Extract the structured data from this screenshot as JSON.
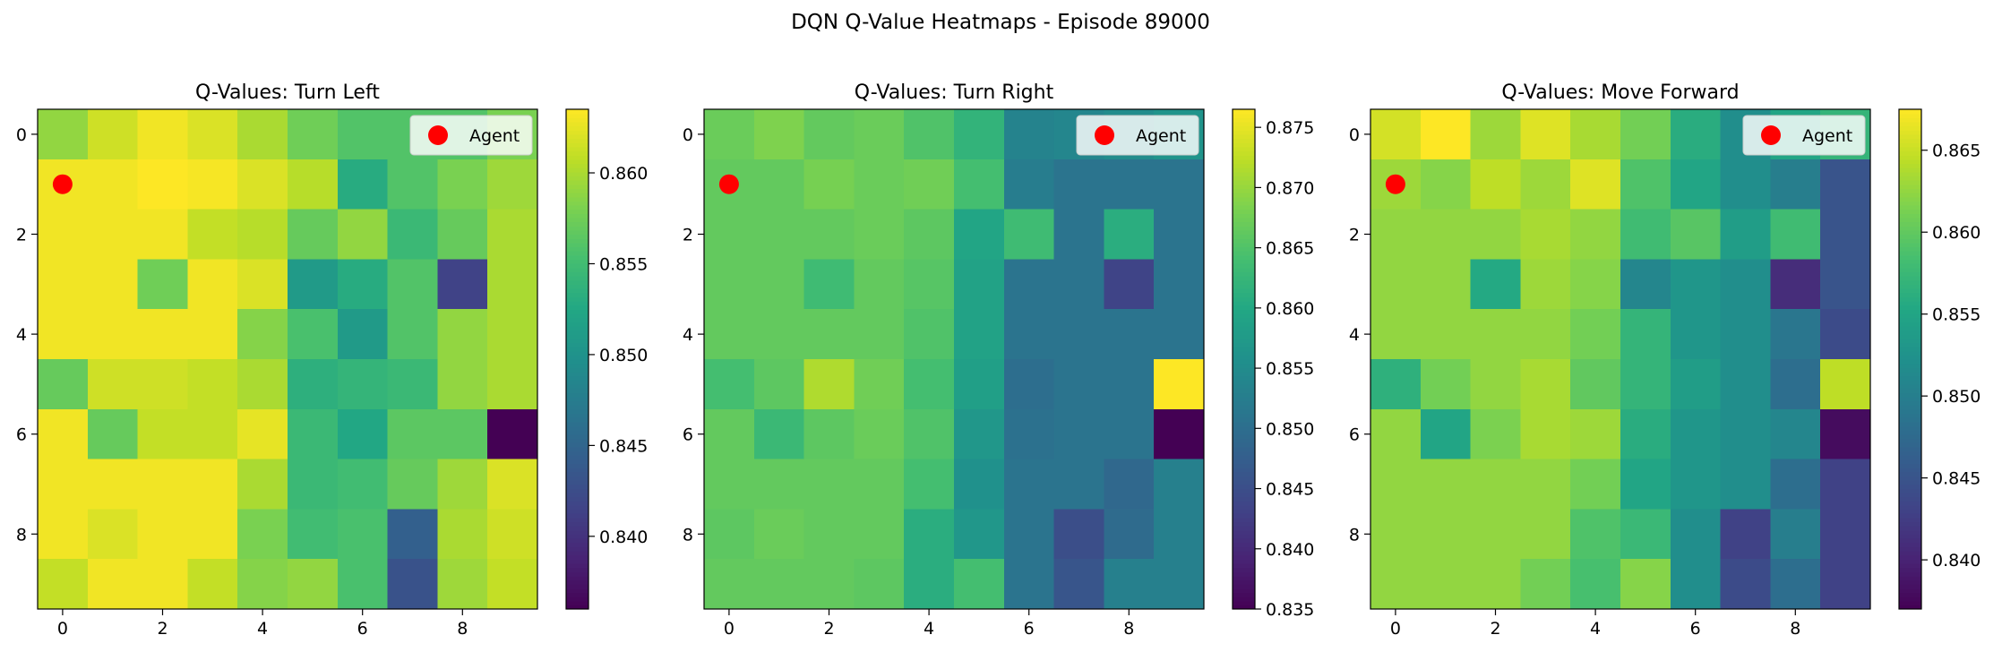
{
  "figure": {
    "suptitle": "DQN Q-Value Heatmaps - Episode 89000"
  },
  "chart_data": [
    {
      "type": "heatmap",
      "title": "Q-Values: Turn Left",
      "xticks": [
        0,
        2,
        4,
        6,
        8
      ],
      "yticks": [
        0,
        2,
        4,
        6,
        8
      ],
      "colormap": "viridis",
      "clim": [
        0.836,
        0.8635
      ],
      "colorbar_ticks": [
        0.84,
        0.845,
        0.85,
        0.855,
        0.86
      ],
      "colorbar_tick_labels": [
        "0.840",
        "0.845",
        "0.850",
        "0.855",
        "0.860"
      ],
      "legend": {
        "label": "Agent",
        "location": "upper right"
      },
      "agent": {
        "row": 1,
        "col": 0,
        "color": "#ff0000"
      },
      "values": [
        [
          0.859,
          0.8615,
          0.863,
          0.862,
          0.86,
          0.8575,
          0.856,
          0.856,
          0.856,
          0.858
        ],
        [
          0.863,
          0.863,
          0.8635,
          0.8632,
          0.862,
          0.8605,
          0.853,
          0.856,
          0.858,
          0.8595
        ],
        [
          0.863,
          0.863,
          0.863,
          0.861,
          0.8605,
          0.857,
          0.859,
          0.8545,
          0.857,
          0.86
        ],
        [
          0.863,
          0.863,
          0.8575,
          0.863,
          0.862,
          0.851,
          0.853,
          0.856,
          0.8415,
          0.86
        ],
        [
          0.863,
          0.863,
          0.863,
          0.863,
          0.8585,
          0.8555,
          0.851,
          0.856,
          0.859,
          0.86
        ],
        [
          0.857,
          0.8615,
          0.8615,
          0.861,
          0.86,
          0.8535,
          0.854,
          0.8545,
          0.859,
          0.86
        ],
        [
          0.863,
          0.857,
          0.861,
          0.861,
          0.8625,
          0.8545,
          0.8525,
          0.8565,
          0.8565,
          0.836
        ],
        [
          0.863,
          0.863,
          0.863,
          0.863,
          0.86,
          0.8545,
          0.855,
          0.857,
          0.8595,
          0.862
        ],
        [
          0.863,
          0.862,
          0.863,
          0.863,
          0.858,
          0.855,
          0.8555,
          0.8445,
          0.86,
          0.8615
        ],
        [
          0.861,
          0.863,
          0.863,
          0.861,
          0.8585,
          0.859,
          0.8555,
          0.843,
          0.8595,
          0.861
        ]
      ]
    },
    {
      "type": "heatmap",
      "title": "Q-Values: Turn Right",
      "xticks": [
        0,
        2,
        4,
        6,
        8
      ],
      "yticks": [
        0,
        2,
        4,
        6,
        8
      ],
      "colormap": "viridis",
      "clim": [
        0.835,
        0.8765
      ],
      "colorbar_ticks": [
        0.835,
        0.84,
        0.845,
        0.85,
        0.855,
        0.86,
        0.865,
        0.87,
        0.875
      ],
      "colorbar_tick_labels": [
        "0.835",
        "0.840",
        "0.845",
        "0.850",
        "0.855",
        "0.860",
        "0.865",
        "0.870",
        "0.875"
      ],
      "legend": {
        "label": "Agent",
        "location": "upper right"
      },
      "agent": {
        "row": 1,
        "col": 0,
        "color": "#ff0000"
      },
      "values": [
        [
          0.867,
          0.8685,
          0.8665,
          0.867,
          0.865,
          0.862,
          0.8535,
          0.854,
          0.855,
          0.8565
        ],
        [
          0.8665,
          0.8665,
          0.868,
          0.867,
          0.8675,
          0.864,
          0.8525,
          0.851,
          0.851,
          0.851
        ],
        [
          0.8665,
          0.8665,
          0.8665,
          0.867,
          0.866,
          0.8595,
          0.8635,
          0.851,
          0.861,
          0.851
        ],
        [
          0.8665,
          0.8665,
          0.8635,
          0.8665,
          0.8655,
          0.859,
          0.851,
          0.851,
          0.8435,
          0.851
        ],
        [
          0.8665,
          0.8665,
          0.8665,
          0.8665,
          0.865,
          0.859,
          0.851,
          0.851,
          0.851,
          0.851
        ],
        [
          0.864,
          0.866,
          0.8715,
          0.8675,
          0.864,
          0.8585,
          0.85,
          0.851,
          0.851,
          0.8765
        ],
        [
          0.8665,
          0.863,
          0.866,
          0.867,
          0.865,
          0.857,
          0.8505,
          0.851,
          0.851,
          0.835
        ],
        [
          0.8665,
          0.8665,
          0.8665,
          0.8665,
          0.864,
          0.856,
          0.851,
          0.851,
          0.849,
          0.853
        ],
        [
          0.866,
          0.867,
          0.8665,
          0.8665,
          0.861,
          0.857,
          0.851,
          0.845,
          0.8495,
          0.853
        ],
        [
          0.8665,
          0.8665,
          0.8665,
          0.866,
          0.861,
          0.864,
          0.851,
          0.846,
          0.853,
          0.853
        ]
      ]
    },
    {
      "type": "heatmap",
      "title": "Q-Values: Move Forward",
      "xticks": [
        0,
        2,
        4,
        6,
        8
      ],
      "yticks": [
        0,
        2,
        4,
        6,
        8
      ],
      "colormap": "viridis",
      "clim": [
        0.837,
        0.8675
      ],
      "colorbar_ticks": [
        0.84,
        0.845,
        0.85,
        0.855,
        0.86,
        0.865
      ],
      "colorbar_tick_labels": [
        "0.840",
        "0.845",
        "0.850",
        "0.855",
        "0.860",
        "0.865"
      ],
      "legend": {
        "label": "Agent",
        "location": "upper right"
      },
      "agent": {
        "row": 1,
        "col": 0,
        "color": "#ff0000"
      },
      "values": [
        [
          0.8655,
          0.8675,
          0.863,
          0.866,
          0.8635,
          0.861,
          0.856,
          0.852,
          0.855,
          0.857
        ],
        [
          0.863,
          0.862,
          0.8645,
          0.863,
          0.866,
          0.859,
          0.855,
          0.852,
          0.85,
          0.845
        ],
        [
          0.8625,
          0.8625,
          0.8625,
          0.8635,
          0.8625,
          0.858,
          0.8595,
          0.854,
          0.858,
          0.845
        ],
        [
          0.8625,
          0.8625,
          0.8555,
          0.863,
          0.862,
          0.851,
          0.853,
          0.852,
          0.841,
          0.845
        ],
        [
          0.8625,
          0.8625,
          0.8625,
          0.8625,
          0.861,
          0.857,
          0.853,
          0.852,
          0.849,
          0.844
        ],
        [
          0.8565,
          0.861,
          0.8625,
          0.8635,
          0.86,
          0.857,
          0.854,
          0.852,
          0.848,
          0.8645
        ],
        [
          0.8625,
          0.855,
          0.8615,
          0.8635,
          0.863,
          0.856,
          0.853,
          0.852,
          0.851,
          0.838
        ],
        [
          0.8625,
          0.8625,
          0.8625,
          0.8625,
          0.861,
          0.855,
          0.853,
          0.852,
          0.848,
          0.843
        ],
        [
          0.8625,
          0.8625,
          0.8625,
          0.8625,
          0.859,
          0.8575,
          0.852,
          0.843,
          0.85,
          0.843
        ],
        [
          0.8625,
          0.8625,
          0.8625,
          0.861,
          0.8585,
          0.862,
          0.852,
          0.844,
          0.848,
          0.843
        ]
      ]
    }
  ]
}
